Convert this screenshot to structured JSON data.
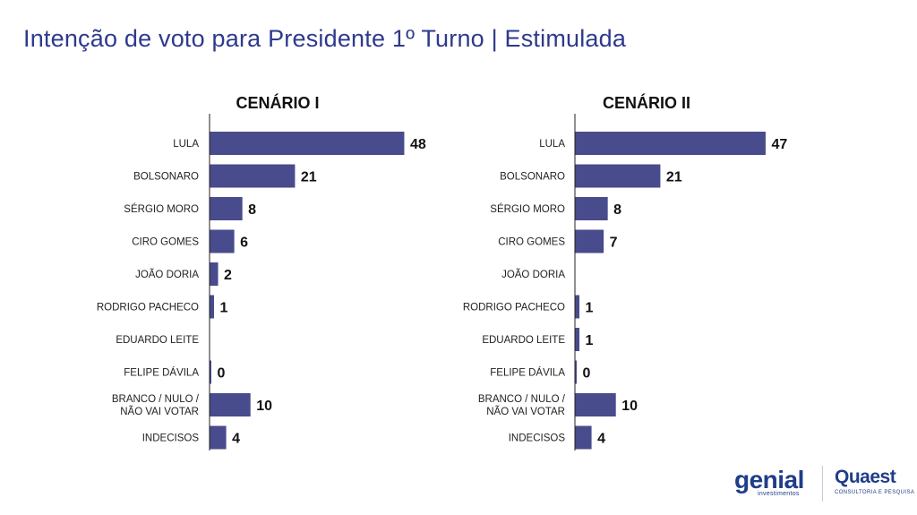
{
  "page": {
    "title": "Intenção de voto para Presidente 1º Turno | Estimulada"
  },
  "chart_data": [
    {
      "type": "bar",
      "orientation": "horizontal",
      "title": "CENÁRIO I",
      "categories": [
        "LULA",
        "BOLSONARO",
        "SÉRGIO MORO",
        "CIRO GOMES",
        "JOÃO DORIA",
        "RODRIGO PACHECO",
        "EDUARDO LEITE",
        "FELIPE DÁVILA",
        "BRANCO / NULO / NÃO VAI VOTAR",
        "INDECISOS"
      ],
      "values": [
        48,
        21,
        8,
        6,
        2,
        1,
        null,
        0,
        10,
        4
      ],
      "value_labels": [
        "48",
        "21",
        "8",
        "6",
        "2",
        "1",
        "",
        "0",
        "10",
        "4"
      ],
      "xlim": [
        0,
        48
      ],
      "grid": false,
      "bar_color": "#484b8c"
    },
    {
      "type": "bar",
      "orientation": "horizontal",
      "title": "CENÁRIO II",
      "categories": [
        "LULA",
        "BOLSONARO",
        "SÉRGIO MORO",
        "CIRO GOMES",
        "JOÃO DORIA",
        "RODRIGO PACHECO",
        "EDUARDO LEITE",
        "FELIPE DÁVILA",
        "BRANCO / NULO / NÃO VAI VOTAR",
        "INDECISOS"
      ],
      "values": [
        47,
        21,
        8,
        7,
        null,
        1,
        1,
        0,
        10,
        4
      ],
      "value_labels": [
        "47",
        "21",
        "8",
        "7",
        "",
        "1",
        "1",
        "0",
        "10",
        "4"
      ],
      "xlim": [
        0,
        48
      ],
      "grid": false,
      "bar_color": "#484b8c"
    }
  ],
  "logos": {
    "genial": {
      "name": "genial",
      "tagline": "investimentos"
    },
    "quaest": {
      "name": "Quaest",
      "tagline": "CONSULTORIA E PESQUISA"
    }
  },
  "colors": {
    "title": "#2e3a8c",
    "bar": "#484b8c",
    "brand": "#1f3d8a"
  }
}
